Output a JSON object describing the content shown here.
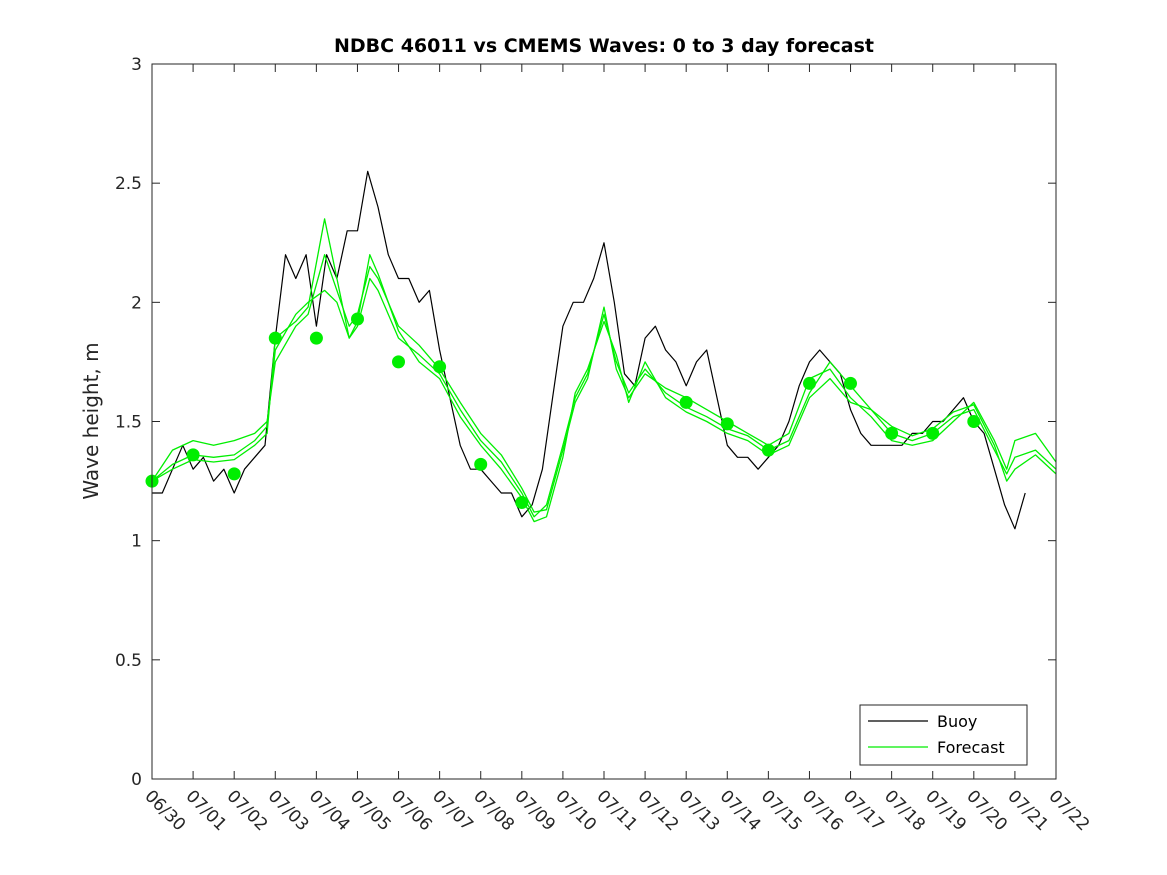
{
  "chart_data": {
    "type": "line",
    "title": "NDBC 46011 vs CMEMS Waves: 0 to 3 day forecast",
    "xlabel": "",
    "ylabel": "Wave height, m",
    "ylim": [
      0,
      3
    ],
    "yticks": [
      0,
      0.5,
      1,
      1.5,
      2,
      2.5,
      3
    ],
    "xlim_days": [
      0,
      22
    ],
    "xtick_labels": [
      "06/30",
      "07/01",
      "07/02",
      "07/03",
      "07/04",
      "07/05",
      "07/06",
      "07/07",
      "07/08",
      "07/09",
      "07/10",
      "07/11",
      "07/12",
      "07/13",
      "07/14",
      "07/15",
      "07/16",
      "07/17",
      "07/18",
      "07/19",
      "07/20",
      "07/21",
      "07/22"
    ],
    "legend_position": "bottom-right",
    "series": [
      {
        "name": "Buoy",
        "color": "#000000",
        "x": [
          0,
          0.25,
          0.5,
          0.75,
          1,
          1.25,
          1.5,
          1.75,
          2,
          2.25,
          2.5,
          2.75,
          3,
          3.25,
          3.5,
          3.75,
          4,
          4.25,
          4.5,
          4.75,
          5,
          5.25,
          5.5,
          5.75,
          6,
          6.25,
          6.5,
          6.75,
          7,
          7.25,
          7.5,
          7.75,
          8,
          8.25,
          8.5,
          8.75,
          9,
          9.25,
          9.5,
          9.75,
          10,
          10.25,
          10.5,
          10.75,
          11,
          11.25,
          11.5,
          11.75,
          12,
          12.25,
          12.5,
          12.75,
          13,
          13.25,
          13.5,
          13.75,
          14,
          14.25,
          14.5,
          14.75,
          15,
          15.25,
          15.5,
          15.75,
          16,
          16.25,
          16.5,
          16.75,
          17,
          17.25,
          17.5,
          17.75,
          18,
          18.25,
          18.5,
          18.75,
          19,
          19.25,
          19.5,
          19.75,
          20,
          20.25,
          20.5,
          20.75,
          21,
          21.25
        ],
        "values": [
          1.2,
          1.2,
          1.3,
          1.4,
          1.3,
          1.35,
          1.25,
          1.3,
          1.2,
          1.3,
          1.35,
          1.4,
          1.85,
          2.2,
          2.1,
          2.2,
          1.9,
          2.2,
          2.1,
          2.3,
          2.3,
          2.55,
          2.4,
          2.2,
          2.1,
          2.1,
          2.0,
          2.05,
          1.8,
          1.6,
          1.4,
          1.3,
          1.3,
          1.25,
          1.2,
          1.2,
          1.1,
          1.15,
          1.3,
          1.6,
          1.9,
          2.0,
          2.0,
          2.1,
          2.25,
          2.0,
          1.7,
          1.65,
          1.85,
          1.9,
          1.8,
          1.75,
          1.65,
          1.75,
          1.8,
          1.6,
          1.4,
          1.35,
          1.35,
          1.3,
          1.35,
          1.4,
          1.5,
          1.65,
          1.75,
          1.8,
          1.75,
          1.7,
          1.55,
          1.45,
          1.4,
          1.4,
          1.4,
          1.4,
          1.45,
          1.45,
          1.5,
          1.5,
          1.55,
          1.6,
          1.5,
          1.45,
          1.3,
          1.15,
          1.05,
          1.2
        ]
      },
      {
        "name": "Forecast",
        "color": "#00ee00",
        "x": [
          0,
          0.5,
          1,
          1.5,
          2,
          2.5,
          2.8,
          3,
          3.5,
          3.8,
          4.2,
          4.5,
          4.8,
          5,
          5.3,
          5.5,
          6,
          6.5,
          7,
          7.5,
          8,
          8.5,
          9,
          9.3,
          9.6,
          10,
          10.3,
          10.6,
          11,
          11.3,
          11.6,
          12,
          12.5,
          13,
          13.5,
          14,
          14.5,
          15,
          15.5,
          16,
          16.5,
          17,
          17.5,
          18,
          18.5,
          19,
          19.5,
          20,
          20.5,
          20.8,
          21,
          21.5,
          22
        ],
        "values": [
          1.25,
          1.32,
          1.36,
          1.35,
          1.36,
          1.42,
          1.48,
          1.8,
          1.95,
          2.0,
          2.05,
          2.0,
          1.85,
          1.9,
          2.1,
          2.05,
          1.85,
          1.78,
          1.7,
          1.55,
          1.42,
          1.33,
          1.2,
          1.1,
          1.15,
          1.4,
          1.6,
          1.7,
          1.95,
          1.75,
          1.62,
          1.72,
          1.62,
          1.56,
          1.52,
          1.47,
          1.44,
          1.38,
          1.42,
          1.62,
          1.75,
          1.65,
          1.55,
          1.45,
          1.42,
          1.45,
          1.52,
          1.55,
          1.38,
          1.28,
          1.35,
          1.38,
          1.3
        ]
      },
      {
        "name": "",
        "color": "#00ee00",
        "x": [
          0,
          0.5,
          1,
          1.5,
          2,
          2.5,
          2.8,
          3,
          3.5,
          3.8,
          4.2,
          4.5,
          4.8,
          5,
          5.3,
          5.5,
          6,
          6.5,
          7,
          7.5,
          8,
          8.5,
          9,
          9.3,
          9.6,
          10,
          10.3,
          10.6,
          11,
          11.3,
          11.6,
          12,
          12.5,
          13,
          13.5,
          14,
          14.5,
          15,
          15.5,
          16,
          16.5,
          17,
          17.5,
          18,
          18.5,
          19,
          19.5,
          20,
          20.5,
          20.8,
          21,
          21.5,
          22
        ],
        "values": [
          1.25,
          1.38,
          1.42,
          1.4,
          1.42,
          1.45,
          1.5,
          1.75,
          1.9,
          1.95,
          2.2,
          2.05,
          1.9,
          1.95,
          2.15,
          2.1,
          1.9,
          1.82,
          1.72,
          1.58,
          1.45,
          1.36,
          1.22,
          1.12,
          1.13,
          1.38,
          1.58,
          1.68,
          1.98,
          1.72,
          1.6,
          1.7,
          1.64,
          1.6,
          1.55,
          1.5,
          1.45,
          1.4,
          1.45,
          1.68,
          1.72,
          1.6,
          1.52,
          1.42,
          1.4,
          1.42,
          1.5,
          1.58,
          1.42,
          1.3,
          1.42,
          1.45,
          1.33
        ]
      },
      {
        "name": "",
        "color": "#00ee00",
        "x": [
          0,
          0.5,
          1,
          1.5,
          2,
          2.5,
          2.8,
          3,
          3.5,
          3.8,
          4.2,
          4.5,
          4.8,
          5,
          5.3,
          5.5,
          6,
          6.5,
          7,
          7.5,
          8,
          8.5,
          9,
          9.3,
          9.6,
          10,
          10.3,
          10.6,
          11,
          11.3,
          11.6,
          12,
          12.5,
          13,
          13.5,
          14,
          14.5,
          15,
          15.5,
          16,
          16.5,
          17,
          17.5,
          18,
          18.5,
          19,
          19.5,
          20,
          20.5,
          20.8,
          21,
          21.5,
          22
        ],
        "values": [
          1.25,
          1.3,
          1.34,
          1.33,
          1.34,
          1.4,
          1.45,
          1.85,
          1.92,
          1.98,
          2.35,
          2.1,
          1.85,
          1.92,
          2.2,
          2.12,
          1.88,
          1.75,
          1.68,
          1.52,
          1.4,
          1.3,
          1.18,
          1.08,
          1.1,
          1.35,
          1.62,
          1.72,
          1.92,
          1.78,
          1.58,
          1.75,
          1.6,
          1.54,
          1.5,
          1.45,
          1.42,
          1.36,
          1.4,
          1.6,
          1.68,
          1.58,
          1.55,
          1.48,
          1.44,
          1.47,
          1.54,
          1.57,
          1.4,
          1.25,
          1.3,
          1.36,
          1.28
        ]
      }
    ],
    "markers": {
      "color": "#00ee00",
      "x": [
        0,
        1,
        2,
        3,
        4,
        5,
        6,
        7,
        8,
        9,
        13,
        14,
        15,
        16,
        17,
        18,
        19,
        20
      ],
      "values": [
        1.25,
        1.36,
        1.28,
        1.85,
        1.85,
        1.93,
        1.75,
        1.73,
        1.32,
        1.16,
        1.58,
        1.49,
        1.38,
        1.66,
        1.66,
        1.45,
        1.45,
        1.5
      ]
    }
  }
}
